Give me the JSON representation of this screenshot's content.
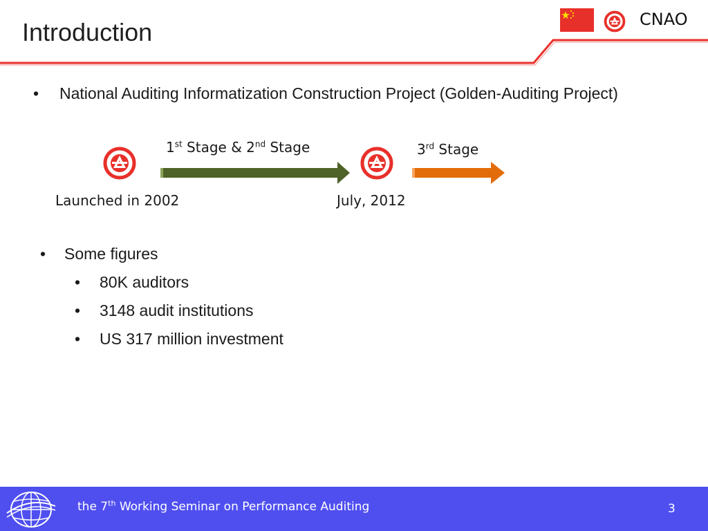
{
  "header": {
    "title": "Introduction",
    "org": "CNAO",
    "flag_icon": "china-flag-icon",
    "emblem_icon": "cnao-emblem-icon",
    "accent_color": "#e8302a"
  },
  "main_bullet": {
    "text": "National Auditing Informatization Construction Project (Golden-Auditing Project)"
  },
  "timeline": {
    "stage1_prefix": "1",
    "stage1_sup": "st",
    "stage1_mid": " Stage & 2",
    "stage2_sup": "nd",
    "stage1_suffix": " Stage",
    "stage3_prefix": "3",
    "stage3_sup": "rd",
    "stage3_suffix": " Stage",
    "start_label": "Launched in 2002",
    "mid_label": "July, 2012",
    "arrow1_color": "#4f6228",
    "arrow2_color": "#e36c0a"
  },
  "figures": {
    "heading": "Some figures",
    "items": [
      "80K auditors",
      "3148 audit institutions",
      "US 317 million investment"
    ]
  },
  "footer": {
    "text_prefix": "the 7",
    "text_sup": "th",
    "text_suffix": " Working Seminar on Performance Auditing",
    "page_number": "3",
    "background": "#4f4ff0"
  },
  "bullet_char": "•"
}
